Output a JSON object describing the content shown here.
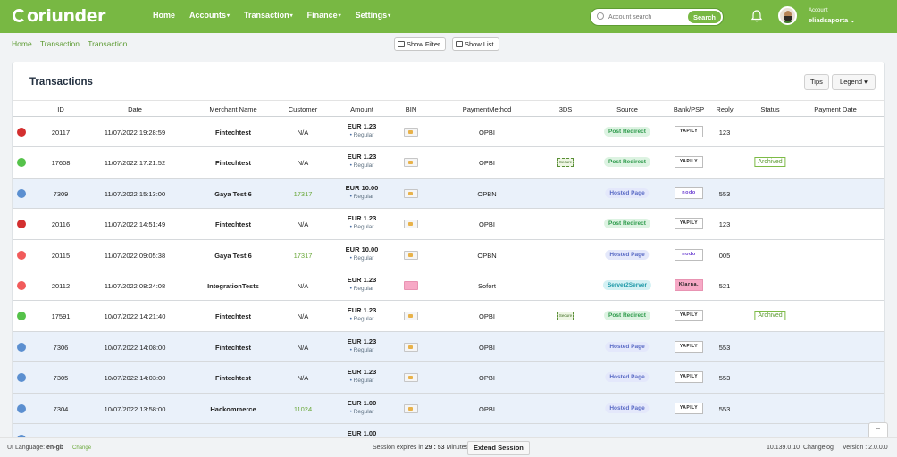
{
  "app": {
    "logo_text": "oriunder"
  },
  "nav": [
    "Home",
    "Accounts",
    "Transaction",
    "Finance",
    "Settings"
  ],
  "nav_dropdown_caret": "▾",
  "search": {
    "placeholder": "Account search",
    "button": "Search"
  },
  "account": {
    "caption": "Account",
    "name": "eliadsaporta",
    "caret": "⌄"
  },
  "breadcrumb": [
    "Home",
    "Transaction",
    "Transaction"
  ],
  "actions": {
    "show_filter": "Show Filter",
    "show_list": "Show List"
  },
  "card": {
    "title": "Transactions",
    "tips": "Tips",
    "legend": "Legend"
  },
  "columns": [
    "ID",
    "Date",
    "Merchant Name",
    "Customer",
    "Amount",
    "BIN",
    "PaymentMethod",
    "3DS",
    "Source",
    "Bank/PSP",
    "Reply",
    "Status",
    "Payment Date"
  ],
  "status_colors": {
    "red": "#d32f2f",
    "green": "#55c24a",
    "blue": "#5b8fd0",
    "salmon": "#f15b5b"
  },
  "source_types": {
    "pr": "Post Redirect",
    "hp": "Hosted Page",
    "ss": "Server2Server"
  },
  "rows": [
    {
      "dot": "red",
      "id": "20117",
      "date": "11/07/2022 19:28:59",
      "merchant": "Fintechtest",
      "customer": "N/A",
      "customer_link": false,
      "amount": "EUR 1.23",
      "type": "Regular",
      "card": "card",
      "method": "OPBI",
      "secure": false,
      "source": "Post Redirect",
      "source_style": "pr",
      "bank": "YAPILY",
      "bank_style": "yapily",
      "reply": "123",
      "status": "",
      "highlight": false
    },
    {
      "dot": "green",
      "id": "17608",
      "date": "11/07/2022 17:21:52",
      "merchant": "Fintechtest",
      "customer": "N/A",
      "customer_link": false,
      "amount": "EUR 1.23",
      "type": "Regular",
      "card": "card",
      "method": "OPBI",
      "secure": true,
      "secure_label": "Secure",
      "source": "Post Redirect",
      "source_style": "pr",
      "bank": "YAPILY",
      "bank_style": "yapily",
      "reply": "",
      "status": "Archived",
      "highlight": false
    },
    {
      "dot": "blue",
      "id": "7309",
      "date": "11/07/2022 15:13:00",
      "merchant": "Gaya Test 6",
      "customer": "17317",
      "customer_link": true,
      "amount": "EUR 10.00",
      "type": "Regular",
      "card": "card",
      "method": "OPBN",
      "secure": false,
      "source": "Hosted Page",
      "source_style": "hp",
      "bank": "nodo",
      "bank_style": "nodo",
      "reply": "553",
      "status": "",
      "highlight": true
    },
    {
      "dot": "red",
      "id": "20116",
      "date": "11/07/2022 14:51:49",
      "merchant": "Fintechtest",
      "customer": "N/A",
      "customer_link": false,
      "amount": "EUR 1.23",
      "type": "Regular",
      "card": "card",
      "method": "OPBI",
      "secure": false,
      "source": "Post Redirect",
      "source_style": "pr",
      "bank": "YAPILY",
      "bank_style": "yapily",
      "reply": "123",
      "status": "",
      "highlight": false
    },
    {
      "dot": "salmon",
      "id": "20115",
      "date": "11/07/2022 09:05:38",
      "merchant": "Gaya Test 6",
      "customer": "17317",
      "customer_link": true,
      "amount": "EUR 10.00",
      "type": "Regular",
      "card": "card",
      "method": "OPBN",
      "secure": false,
      "source": "Hosted Page",
      "source_style": "hp",
      "bank": "nodo",
      "bank_style": "nodo",
      "reply": "005",
      "status": "",
      "highlight": false
    },
    {
      "dot": "salmon",
      "id": "20112",
      "date": "11/07/2022 08:24:08",
      "merchant": "IntegrationTests",
      "customer": "N/A",
      "customer_link": false,
      "amount": "EUR 1.23",
      "type": "Regular",
      "card": "klarna",
      "method": "Sofort",
      "secure": false,
      "source": "Server2Server",
      "source_style": "ss",
      "bank": "Klarna.",
      "bank_style": "klarna",
      "reply": "521",
      "status": "",
      "highlight": false
    },
    {
      "dot": "green",
      "id": "17591",
      "date": "10/07/2022 14:21:40",
      "merchant": "Fintechtest",
      "customer": "N/A",
      "customer_link": false,
      "amount": "EUR 1.23",
      "type": "Regular",
      "card": "card",
      "method": "OPBI",
      "secure": true,
      "secure_label": "Secure",
      "source": "Post Redirect",
      "source_style": "pr",
      "bank": "YAPILY",
      "bank_style": "yapily",
      "reply": "",
      "status": "Archived",
      "highlight": false
    },
    {
      "dot": "blue",
      "id": "7306",
      "date": "10/07/2022 14:08:00",
      "merchant": "Fintechtest",
      "customer": "N/A",
      "customer_link": false,
      "amount": "EUR 1.23",
      "type": "Regular",
      "card": "card",
      "method": "OPBI",
      "secure": false,
      "source": "Hosted Page",
      "source_style": "hp",
      "bank": "YAPILY",
      "bank_style": "yapily",
      "reply": "553",
      "status": "",
      "highlight": true
    },
    {
      "dot": "blue",
      "id": "7305",
      "date": "10/07/2022 14:03:00",
      "merchant": "Fintechtest",
      "customer": "N/A",
      "customer_link": false,
      "amount": "EUR 1.23",
      "type": "Regular",
      "card": "card",
      "method": "OPBI",
      "secure": false,
      "source": "Hosted Page",
      "source_style": "hp",
      "bank": "YAPILY",
      "bank_style": "yapily",
      "reply": "553",
      "status": "",
      "highlight": true
    },
    {
      "dot": "blue",
      "id": "7304",
      "date": "10/07/2022 13:58:00",
      "merchant": "Hackommerce",
      "customer": "11024",
      "customer_link": true,
      "amount": "EUR 1.00",
      "type": "Regular",
      "card": "card",
      "method": "OPBI",
      "secure": false,
      "source": "Hosted Page",
      "source_style": "hp",
      "bank": "YAPILY",
      "bank_style": "yapily",
      "reply": "553",
      "status": "",
      "highlight": true
    },
    {
      "dot": "blue",
      "id": "",
      "date": "",
      "merchant": "",
      "customer": "",
      "customer_link": false,
      "amount": "EUR 1.00",
      "type": "",
      "card": "",
      "method": "",
      "secure": false,
      "source": "",
      "source_style": "",
      "bank": "",
      "bank_style": "",
      "reply": "",
      "status": "",
      "highlight": true
    }
  ],
  "footer": {
    "ui_language_label": "UI Language:",
    "ui_language": "en-gb",
    "change": "Change",
    "session_prefix": "Session expires in",
    "session_time": "29 : 53",
    "session_suffix": "Minutes",
    "extend": "Extend Session",
    "ip": "10.139.0.10",
    "changelog": "Changelog",
    "version": "Version : 2.0.0.0"
  }
}
